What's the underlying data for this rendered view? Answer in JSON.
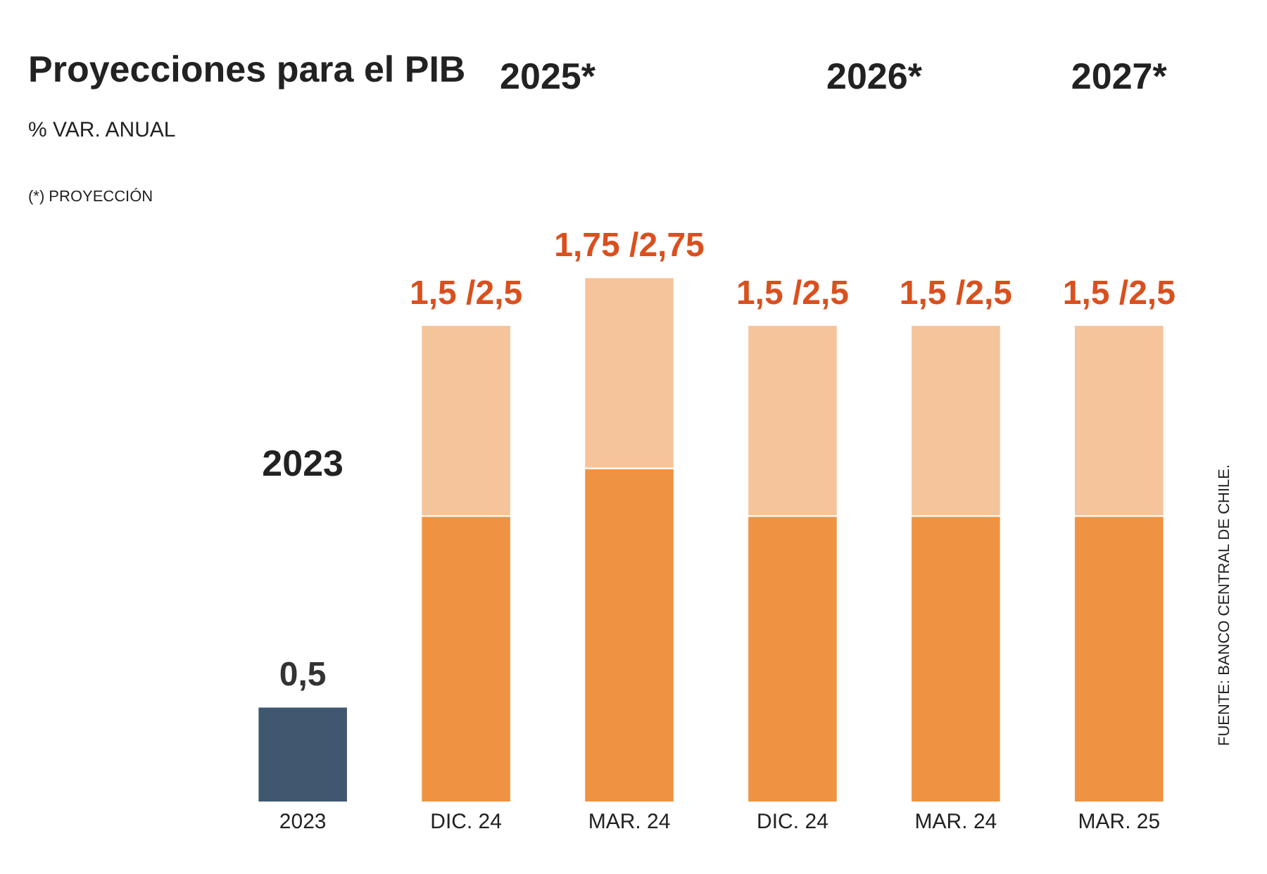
{
  "chart_data": {
    "type": "bar",
    "stacked": true,
    "title": "Proyecciones para el PIB",
    "subtitle": "% VAR. ANUAL",
    "categories": [
      "2023",
      "DIC. 24",
      "MAR. 24",
      "DIC. 24",
      "MAR. 24",
      "MAR. 25"
    ],
    "series": [
      {
        "colors": [
          "#3f5870",
          "#ef9342",
          "#ef9342",
          "#ef9342",
          "#ef9342",
          "#ef9342"
        ],
        "values": [
          0.5,
          1.5,
          1.75,
          1.5,
          1.5,
          1.5
        ],
        "value_labels": [
          "0,5",
          null,
          null,
          null,
          null,
          null
        ]
      },
      {
        "color": "#f6c49a",
        "values": [
          null,
          1,
          1,
          1,
          1,
          1
        ]
      }
    ],
    "annotations": [
      "2023",
      "2025*",
      "2026*",
      "2027*",
      "(*) PROYECCIÓN",
      "FUENTE: BANCO CENTRAL DE CHILE.",
      "1,5 /2,5",
      "1,75 /2,75",
      "1,5 /2,5",
      "1,5 /2,5",
      "1,5 /2,5"
    ]
  }
}
